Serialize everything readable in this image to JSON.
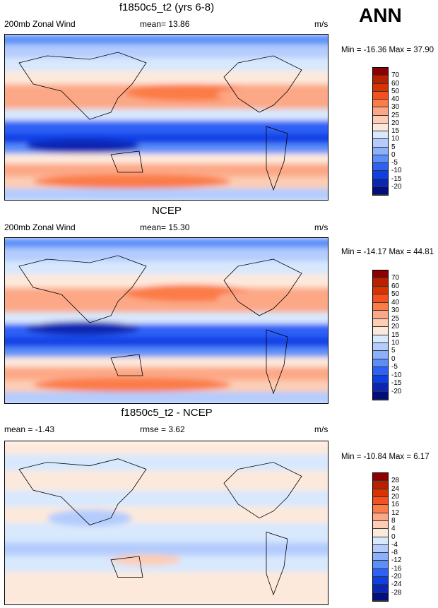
{
  "corner_label": "ANN",
  "panels": [
    {
      "title": "f1850c5_t2 (yrs 6-8)",
      "left": "200mb Zonal Wind",
      "center": "mean=  13.86",
      "right": "m/s",
      "minmax": "Min = -16.36 Max =  37.90",
      "levels": [
        "70",
        "60",
        "50",
        "40",
        "30",
        "25",
        "20",
        "15",
        "10",
        "5",
        "0",
        "-5",
        "-10",
        "-15",
        "-20"
      ]
    },
    {
      "title": "NCEP",
      "left": "200mb Zonal Wind",
      "center": "mean=  15.30",
      "right": "m/s",
      "minmax": "Min = -14.17 Max =  44.81",
      "levels": [
        "70",
        "60",
        "50",
        "40",
        "30",
        "25",
        "20",
        "15",
        "10",
        "5",
        "0",
        "-5",
        "-10",
        "-15",
        "-20"
      ]
    },
    {
      "title": "f1850c5_t2 - NCEP",
      "left": "mean =  -1.43",
      "center": "rmse =   3.62",
      "right": "m/s",
      "minmax": "Min = -10.84 Max =   6.17",
      "levels": [
        "28",
        "24",
        "20",
        "16",
        "12",
        "8",
        "4",
        "0",
        "-4",
        "-8",
        "-12",
        "-16",
        "-20",
        "-24",
        "-28"
      ]
    }
  ],
  "colors": [
    "#8b0000",
    "#b82000",
    "#d93300",
    "#f5501e",
    "#fb7c46",
    "#fca886",
    "#fdcdb4",
    "#fde9dc",
    "#d8e8fd",
    "#b4ccfd",
    "#8db0fb",
    "#5a8ef9",
    "#2f60f6",
    "#0d3fe6",
    "#0a26b2",
    "#000e80"
  ]
}
